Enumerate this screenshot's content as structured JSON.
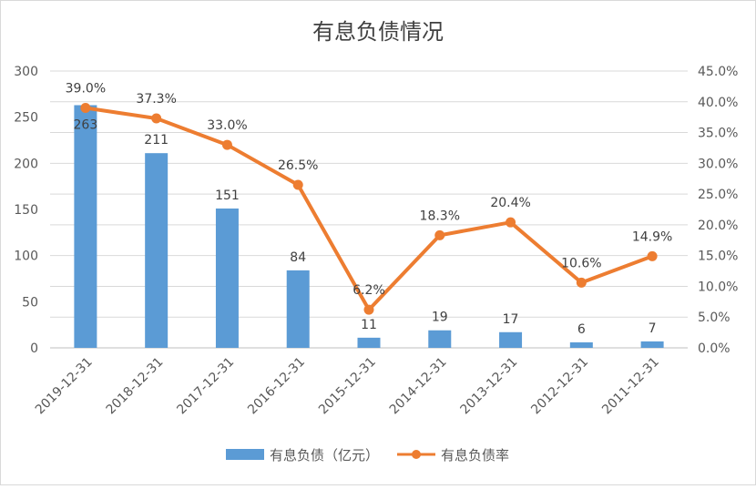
{
  "chart_data": {
    "type": "bar+line",
    "title": "有息负债情况",
    "categories": [
      "2019-12-31",
      "2018-12-31",
      "2017-12-31",
      "2016-12-31",
      "2015-12-31",
      "2014-12-31",
      "2013-12-31",
      "2012-12-31",
      "2011-12-31"
    ],
    "series": [
      {
        "name": "有息负债（亿元）",
        "type": "bar",
        "axis": "left",
        "color": "#5B9BD5",
        "values": [
          263,
          211,
          151,
          84,
          11,
          19,
          17,
          6,
          7
        ],
        "labels": [
          "263",
          "211",
          "151",
          "84",
          "11",
          "19",
          "17",
          "6",
          "7"
        ]
      },
      {
        "name": "有息负债率",
        "type": "line",
        "axis": "right",
        "color": "#ED7D31",
        "values": [
          39.0,
          37.3,
          33.0,
          26.5,
          6.2,
          18.3,
          20.4,
          10.6,
          14.9
        ],
        "labels": [
          "39.0%",
          "37.3%",
          "33.0%",
          "26.5%",
          "6.2%",
          "18.3%",
          "20.4%",
          "10.6%",
          "14.9%"
        ]
      }
    ],
    "y_left": {
      "min": 0,
      "max": 300,
      "ticks": [
        "0",
        "50",
        "100",
        "150",
        "200",
        "250",
        "300"
      ]
    },
    "y_right": {
      "min": 0,
      "max": 45,
      "ticks": [
        "0.0%",
        "5.0%",
        "10.0%",
        "15.0%",
        "20.0%",
        "25.0%",
        "30.0%",
        "35.0%",
        "40.0%",
        "45.0%"
      ]
    },
    "grid": true,
    "legend": "bottom"
  }
}
